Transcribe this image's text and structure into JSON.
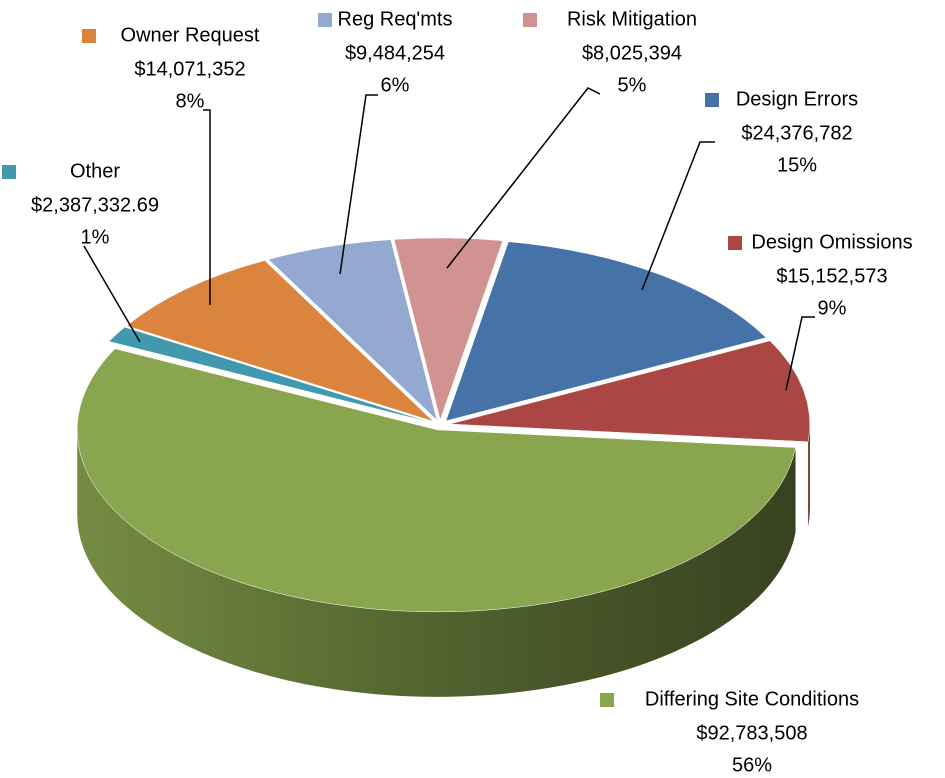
{
  "chart_data": {
    "type": "pie3d",
    "categories": [
      "Design Errors",
      "Design Omissions",
      "Differing Site Conditions",
      "Other",
      "Owner Request",
      "Reg Req'mts",
      "Risk Mitigation"
    ],
    "values": [
      24376782,
      15152573,
      92783508,
      2387332.69,
      14071352,
      9484254,
      8025394
    ],
    "value_labels": [
      "$24,376,782",
      "$15,152,573",
      "$92,783,508",
      "$2,387,332.69",
      "$14,071,352",
      "$9,484,254",
      "$8,025,394"
    ],
    "percents": [
      15,
      9,
      56,
      1,
      8,
      6,
      5
    ],
    "percent_labels": [
      "15%",
      "9%",
      "56%",
      "1%",
      "8%",
      "6%",
      "5%"
    ],
    "colors": [
      "#4572a7",
      "#aa4643",
      "#89a54e",
      "#4198af",
      "#db843d",
      "#93a9cf",
      "#d19392"
    ]
  }
}
